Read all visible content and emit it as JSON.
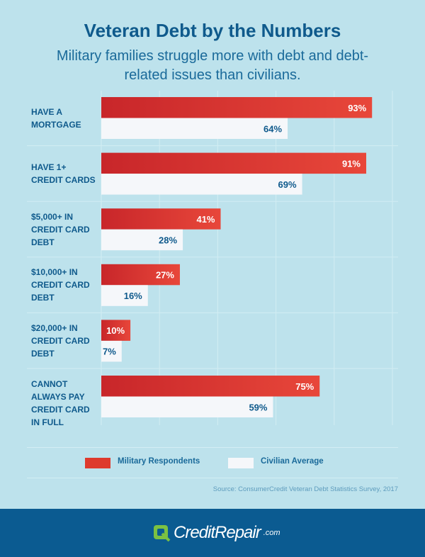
{
  "header": {
    "title": "Veteran Debt by the Numbers",
    "subtitle": "Military families struggle more with debt and debt-related issues than civilians."
  },
  "chart_data": {
    "type": "bar",
    "orientation": "horizontal",
    "categories": [
      "HAVE A MORTGAGE",
      "HAVE 1+ CREDIT CARDS",
      "$5,000+ IN CREDIT CARD DEBT",
      "$10,000+ IN CREDIT CARD DEBT",
      "$20,000+ IN CREDIT CARD DEBT",
      "CANNOT ALWAYS PAY CREDIT CARD IN FULL"
    ],
    "series": [
      {
        "name": "Military Respondents",
        "values": [
          93,
          91,
          41,
          27,
          10,
          75
        ],
        "color": "#e0392c"
      },
      {
        "name": "Civilian Average",
        "values": [
          64,
          69,
          28,
          16,
          7,
          59
        ],
        "color": "#f5f7fa"
      }
    ],
    "value_labels": [
      [
        "93%",
        "91%",
        "41%",
        "27%",
        "10%",
        "75%"
      ],
      [
        "64%",
        "69%",
        "28%",
        "16%",
        "7%",
        "59%"
      ]
    ],
    "xlim": [
      0,
      100
    ],
    "grid": true,
    "legend": "bottom",
    "source": "Source: ConsumerCredit Veteran Debt Statistics Survey, 2017"
  },
  "footer": {
    "brand": "CreditRepair",
    "brand_suffix": ".com",
    "brand_color": "#7cc142",
    "background": "#0b5b91"
  }
}
